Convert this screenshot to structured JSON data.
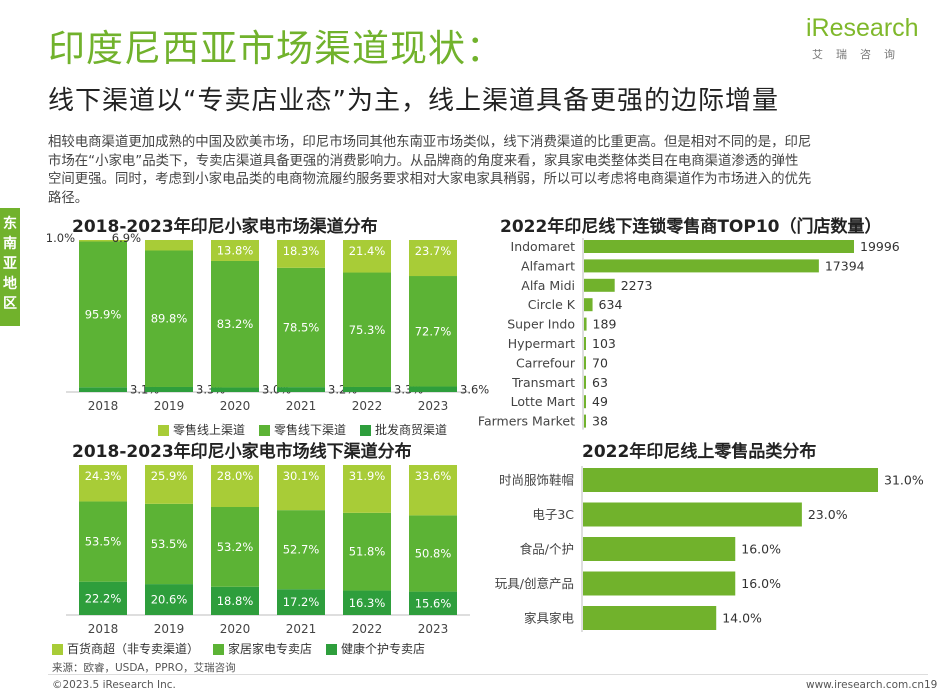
{
  "header": {
    "title": "印度尼西亚市场渠道现状：",
    "subtitle": "线下渠道以“专卖店业态”为主，线上渠道具备更强的边际增量",
    "logo_main": "iResearch",
    "logo_sub": "艾瑞咨询"
  },
  "intro": [
    "相较电商渠道更加成熟的中国及欧美市场，印尼市场同其他东南亚市场类似，线下消费渠道的比重更高。但是相对不同的是，印尼",
    "市场在“小家电”品类下，专卖店渠道具备更强的消费影响力。从品牌商的角度来看，家具家电类整体类目在电商渠道渗透的弹性",
    "空间更强。同时，考虑到小家电品类的电商物流履约服务要求相对大家电家具稍弱，所以可以考虑将电商渠道作为市场进入的优先",
    "路径。"
  ],
  "side_tab": [
    "东",
    "南",
    "亚",
    "地",
    "区"
  ],
  "chart_data": [
    {
      "type": "bar",
      "stacked": true,
      "title": "2018-2023年印尼小家电市场渠道分布",
      "categories": [
        "2018",
        "2019",
        "2020",
        "2021",
        "2022",
        "2023"
      ],
      "series": [
        {
          "name": "批发商贸渠道",
          "color": "#2e9e3c",
          "values": [
            3.1,
            3.3,
            3.0,
            3.2,
            3.3,
            3.6
          ],
          "labels": [
            "3.1%",
            "3.3%",
            "3.0%",
            "3.2%",
            "3.3%",
            "3.6%"
          ]
        },
        {
          "name": "零售线下渠道",
          "color": "#5cb335",
          "values": [
            95.9,
            89.8,
            83.2,
            78.5,
            75.3,
            72.7
          ],
          "labels": [
            "95.9%",
            "89.8%",
            "83.2%",
            "78.5%",
            "75.3%",
            "72.7%"
          ]
        },
        {
          "name": "零售线上渠道",
          "color": "#a8cc37",
          "values": [
            1.0,
            6.9,
            13.8,
            18.3,
            21.4,
            23.7
          ],
          "labels": [
            "1.0%",
            "6.9%",
            "13.8%",
            "18.3%",
            "21.4%",
            "23.7%"
          ]
        }
      ],
      "legend_order": [
        "零售线上渠道",
        "零售线下渠道",
        "批发商贸渠道"
      ],
      "ylim": [
        0,
        100
      ],
      "grid": false,
      "legend": "bottom"
    },
    {
      "type": "bar",
      "stacked": true,
      "title": "2018-2023年印尼小家电市场线下渠道分布",
      "categories": [
        "2018",
        "2019",
        "2020",
        "2021",
        "2022",
        "2023"
      ],
      "series": [
        {
          "name": "健康个护专卖店",
          "color": "#2e9e3c",
          "values": [
            22.2,
            20.6,
            18.8,
            17.2,
            16.3,
            15.6
          ],
          "labels": [
            "22.2%",
            "20.6%",
            "18.8%",
            "17.2%",
            "16.3%",
            "15.6%"
          ]
        },
        {
          "name": "家居家电专卖店",
          "color": "#5cb335",
          "values": [
            53.5,
            53.5,
            53.2,
            52.7,
            51.8,
            50.8
          ],
          "labels": [
            "53.5%",
            "53.5%",
            "53.2%",
            "52.7%",
            "51.8%",
            "50.8%"
          ]
        },
        {
          "name": "百货商超（非专卖渠道）",
          "color": "#a8cc37",
          "values": [
            24.3,
            25.9,
            28.0,
            30.1,
            31.9,
            33.6
          ],
          "labels": [
            "24.3%",
            "25.9%",
            "28.0%",
            "30.1%",
            "31.9%",
            "33.6%"
          ]
        }
      ],
      "legend_order": [
        "百货商超（非专卖渠道）",
        "家居家电专卖店",
        "健康个护专卖店"
      ],
      "ylim": [
        0,
        100
      ],
      "grid": false,
      "legend": "bottom"
    },
    {
      "type": "bar",
      "orientation": "horizontal",
      "title": "2022年印尼线下连锁零售商TOP10（门店数量）",
      "categories": [
        "Indomaret",
        "Alfamart",
        "Alfa Midi",
        "Circle K",
        "Super Indo",
        "Hypermart",
        "Carrefour",
        "Transmart",
        "Lotte Mart",
        "Farmers Market"
      ],
      "values": [
        19996,
        17394,
        2273,
        634,
        189,
        103,
        70,
        63,
        49,
        38
      ],
      "labels": [
        "19996",
        "17394",
        "2273",
        "634",
        "189",
        "103",
        "70",
        "63",
        "49",
        "38"
      ],
      "color": "#71b22c",
      "xlim": [
        0,
        19996
      ],
      "grid": false
    },
    {
      "type": "bar",
      "orientation": "horizontal",
      "title": "2022年印尼线上零售品类分布",
      "categories": [
        "时尚服饰鞋帽",
        "电子3C",
        "食品/个护",
        "玩具/创意产品",
        "家具家电"
      ],
      "values": [
        31.0,
        23.0,
        16.0,
        16.0,
        14.0
      ],
      "labels": [
        "31.0%",
        "23.0%",
        "16.0%",
        "16.0%",
        "14.0%"
      ],
      "color": "#71b22c",
      "xlim": [
        0,
        31
      ],
      "grid": false
    }
  ],
  "footer": {
    "source": "来源：欧睿，USDA，PPRO，艾瑞咨询",
    "copyright": "©2023.5 iResearch Inc.",
    "website": "www.iresearch.com.cn",
    "page": "19"
  }
}
